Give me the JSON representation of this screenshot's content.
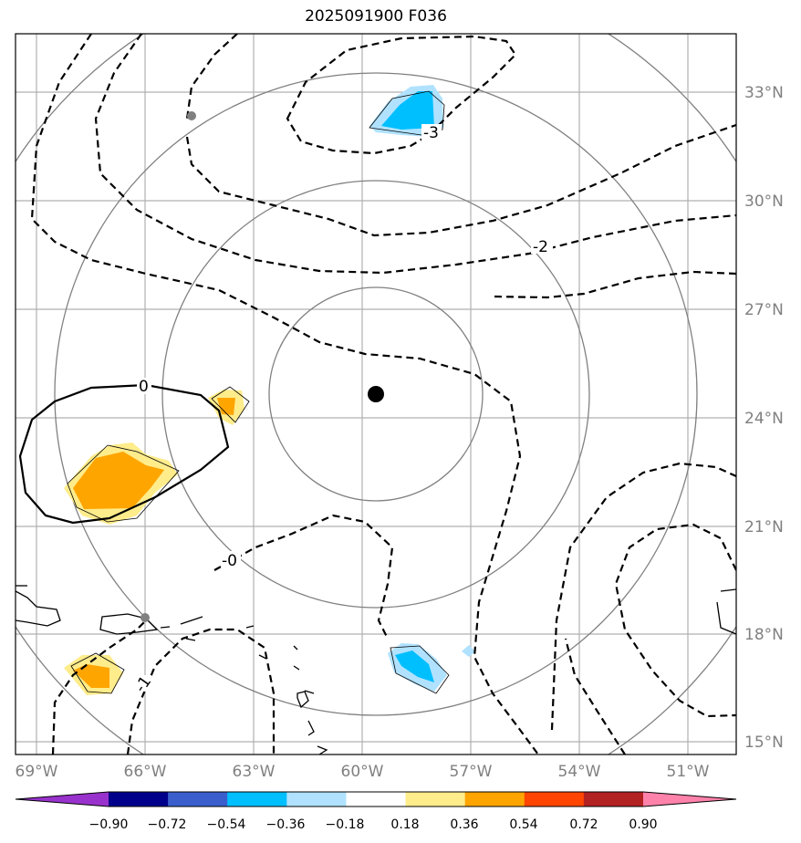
{
  "title": "2025091900 F036",
  "lon_labels": [
    "69°W",
    "66°W",
    "63°W",
    "60°W",
    "57°W",
    "54°W",
    "51°W"
  ],
  "lat_labels": [
    "33°N",
    "30°N",
    "27°N",
    "24°N",
    "21°N",
    "18°N",
    "15°N"
  ],
  "contour_labels": [
    "-3",
    "-2",
    "0",
    "-0",
    "-1"
  ],
  "colorbar": {
    "ticks": [
      "−0.90",
      "−0.72",
      "−0.54",
      "−0.36",
      "−0.18",
      "0.18",
      "0.36",
      "0.54",
      "0.72",
      "0.90"
    ],
    "colors": [
      "#9932cc",
      "#00008b",
      "#3a5fcd",
      "#00bfff",
      "#b0e2ff",
      "#ffffff",
      "#ffec8b",
      "#ffa500",
      "#ff4500",
      "#b22222",
      "#ff82ab"
    ]
  },
  "center_marker": {
    "lon": -59.6,
    "lat": 24.6
  },
  "gray_markers": [
    {
      "lon": -64.7,
      "lat": 32.3
    },
    {
      "lon": -66.0,
      "lat": 18.4
    }
  ]
}
